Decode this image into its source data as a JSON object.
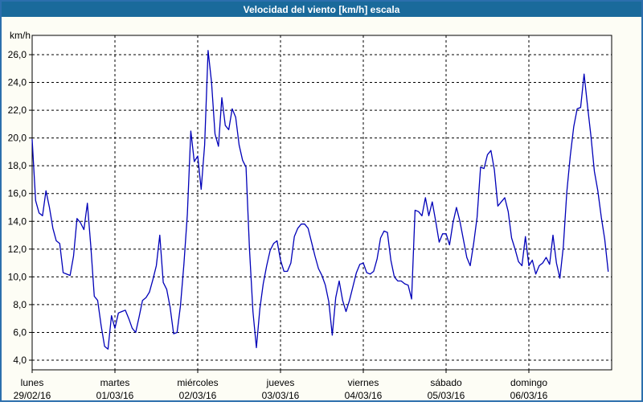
{
  "window": {
    "title": "Velocidad del viento [km/h] escala"
  },
  "colors": {
    "title_bar": "#1A6A9B",
    "frame_border": "#2C6FAD",
    "background": "#FDFDF5",
    "plot_background": "#FFFFFF",
    "grid": "#000000",
    "line": "#0000B8",
    "title_text": "#FFFFFF",
    "label_text": "#000000"
  },
  "chart_data": {
    "type": "line",
    "title": "Velocidad del viento [km/h] escala",
    "ylabel": "km/h",
    "xlabel": "",
    "ylim": [
      3.3,
      27.4
    ],
    "grid": "dashed, horizontal every 2 km/h and vertical at each day boundary",
    "legend_position": "none",
    "points_per_day": 24,
    "y_ticks": [
      {
        "value": 26,
        "label": "26,0"
      },
      {
        "value": 24,
        "label": "24,0"
      },
      {
        "value": 22,
        "label": "22,0"
      },
      {
        "value": 20,
        "label": "20,0"
      },
      {
        "value": 18,
        "label": "18,0"
      },
      {
        "value": 16,
        "label": "16,0"
      },
      {
        "value": 14,
        "label": "14,0"
      },
      {
        "value": 12,
        "label": "12,0"
      },
      {
        "value": 10,
        "label": "10,0"
      },
      {
        "value": 8,
        "label": "8,0"
      },
      {
        "value": 6,
        "label": "6,0"
      },
      {
        "value": 4,
        "label": "4,0"
      }
    ],
    "x_days": [
      {
        "name": "lunes",
        "date": "29/02/16"
      },
      {
        "name": "martes",
        "date": "01/03/16"
      },
      {
        "name": "miércoles",
        "date": "02/03/16"
      },
      {
        "name": "jueves",
        "date": "03/03/16"
      },
      {
        "name": "viernes",
        "date": "04/03/16"
      },
      {
        "name": "sábado",
        "date": "05/03/16"
      },
      {
        "name": "domingo",
        "date": "06/03/16"
      }
    ],
    "series_name": "Velocidad del viento [km/h]",
    "values": [
      19.9,
      15.5,
      14.6,
      14.4,
      16.2,
      15.0,
      13.5,
      12.6,
      12.4,
      10.3,
      10.2,
      10.1,
      11.5,
      14.2,
      13.9,
      13.4,
      15.3,
      12.2,
      8.6,
      8.3,
      6.5,
      5.0,
      4.8,
      7.2,
      6.3,
      7.4,
      7.5,
      7.6,
      7.0,
      6.3,
      6.0,
      7.1,
      8.3,
      8.5,
      8.9,
      9.8,
      10.8,
      13.0,
      9.6,
      9.1,
      7.8,
      5.9,
      6.0,
      7.9,
      10.9,
      14.5,
      20.5,
      18.3,
      18.7,
      16.3,
      19.5,
      26.3,
      24.0,
      20.3,
      19.4,
      22.9,
      20.9,
      20.6,
      22.1,
      21.5,
      19.5,
      18.4,
      17.9,
      12.0,
      7.5,
      4.9,
      7.7,
      9.5,
      10.8,
      11.9,
      12.4,
      12.6,
      11.2,
      10.4,
      10.4,
      11.0,
      12.9,
      13.5,
      13.8,
      13.8,
      13.5,
      12.5,
      11.5,
      10.6,
      10.1,
      9.4,
      8.2,
      5.8,
      8.5,
      9.7,
      8.3,
      7.5,
      8.3,
      9.3,
      10.3,
      10.9,
      11.0,
      10.3,
      10.2,
      10.4,
      11.3,
      12.8,
      13.3,
      13.2,
      11.2,
      10.0,
      9.7,
      9.7,
      9.5,
      9.4,
      8.4,
      14.8,
      14.7,
      14.4,
      15.7,
      14.4,
      15.4,
      14.0,
      12.5,
      13.1,
      13.1,
      12.3,
      13.9,
      15.0,
      14.0,
      12.7,
      11.4,
      10.8,
      12.4,
      14.3,
      17.9,
      17.8,
      18.8,
      19.1,
      17.7,
      15.1,
      15.4,
      15.7,
      14.7,
      12.8,
      12.0,
      11.1,
      10.8,
      12.9,
      10.8,
      11.2,
      10.2,
      10.8,
      11.0,
      11.4,
      10.9,
      13.0,
      11.0,
      9.9,
      12.2,
      16.1,
      18.7,
      20.8,
      22.1,
      22.2,
      24.6,
      22.3,
      20.1,
      17.6,
      16.2,
      14.3,
      12.7,
      10.4
    ]
  }
}
